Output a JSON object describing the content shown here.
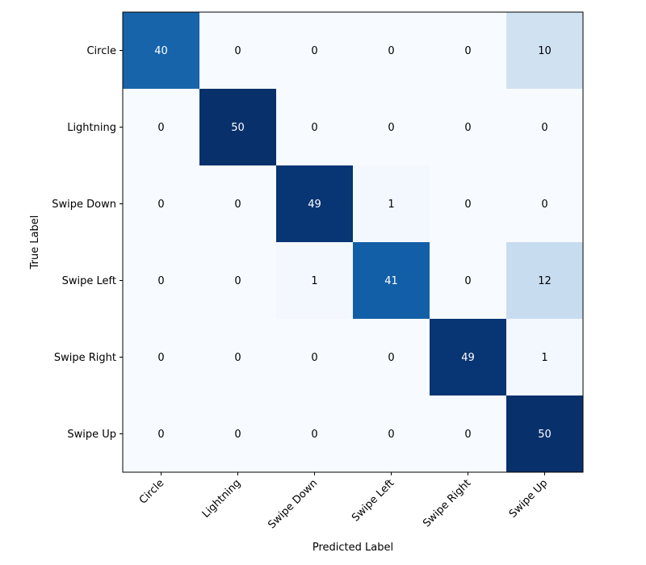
{
  "chart_data": {
    "type": "heatmap",
    "title": "",
    "xlabel": "Predicted Label",
    "ylabel": "True Label",
    "x_categories": [
      "Circle",
      "Lightning",
      "Swipe Down",
      "Swipe Left",
      "Swipe Right",
      "Swipe Up"
    ],
    "y_categories": [
      "Circle",
      "Lightning",
      "Swipe Down",
      "Swipe Left",
      "Swipe Right",
      "Swipe Up"
    ],
    "values": [
      [
        40,
        0,
        0,
        0,
        0,
        10
      ],
      [
        0,
        50,
        0,
        0,
        0,
        0
      ],
      [
        0,
        0,
        49,
        1,
        0,
        0
      ],
      [
        0,
        0,
        1,
        41,
        0,
        12
      ],
      [
        0,
        0,
        0,
        0,
        49,
        1
      ],
      [
        0,
        0,
        0,
        0,
        0,
        50
      ]
    ],
    "vmin": 0,
    "vmax": 50,
    "colormap": "Blues",
    "colorscale": [
      "#f7fbff",
      "#deebf7",
      "#c6dbef",
      "#9ecae1",
      "#6baed6",
      "#4292c6",
      "#2171b5",
      "#08519c",
      "#08306b"
    ],
    "text_color_dark": "#000000",
    "text_color_light": "#ffffff",
    "grid": false,
    "x_tick_rotation": 45
  }
}
